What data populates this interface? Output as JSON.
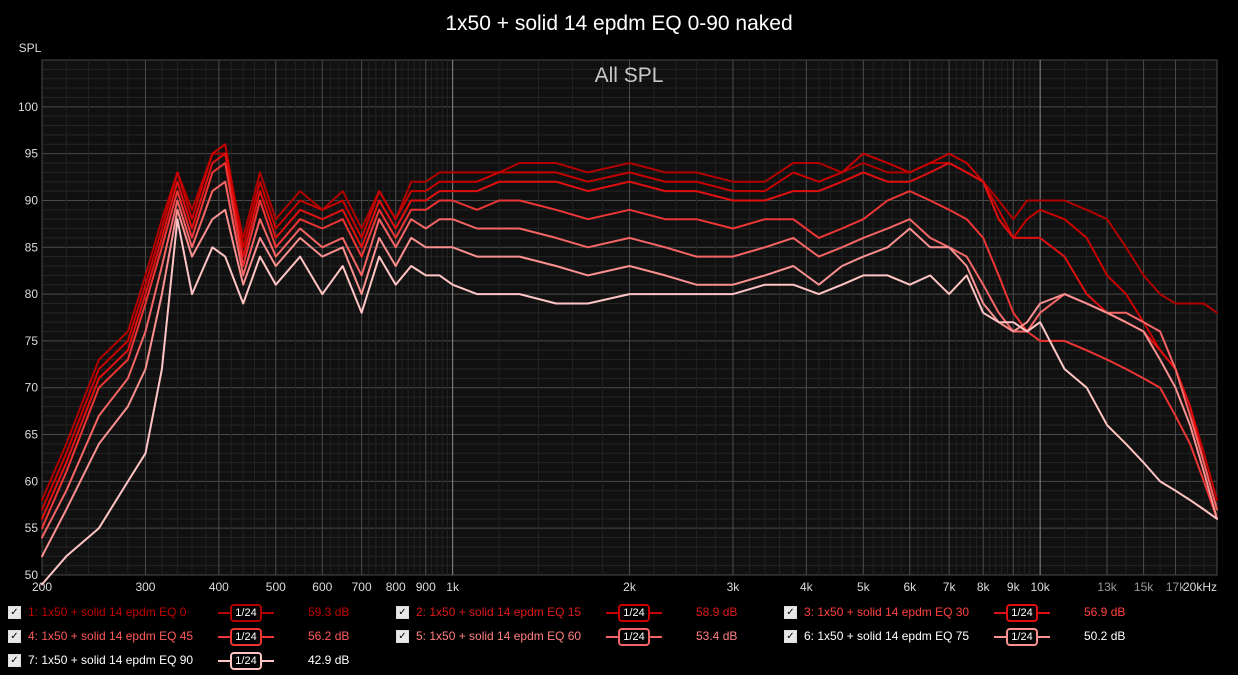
{
  "title": "1x50 + solid 14 epdm EQ 0-90 naked",
  "chart_data": {
    "type": "line",
    "title": "All SPL",
    "ylabel": "SPL",
    "xlabel": "",
    "x_scale": "log",
    "xlim": [
      200,
      20000
    ],
    "ylim": [
      50,
      105
    ],
    "y_ticks": [
      "50",
      "55",
      "60",
      "65",
      "70",
      "75",
      "80",
      "85",
      "90",
      "95",
      "100"
    ],
    "x_ticks": [
      {
        "f": 200,
        "label": "200"
      },
      {
        "f": 300,
        "label": "300"
      },
      {
        "f": 400,
        "label": "400"
      },
      {
        "f": 500,
        "label": "500"
      },
      {
        "f": 600,
        "label": "600"
      },
      {
        "f": 700,
        "label": "700"
      },
      {
        "f": 800,
        "label": "800"
      },
      {
        "f": 900,
        "label": "900"
      },
      {
        "f": 1000,
        "label": "1k"
      },
      {
        "f": 2000,
        "label": "2k"
      },
      {
        "f": 3000,
        "label": "3k"
      },
      {
        "f": 4000,
        "label": "4k"
      },
      {
        "f": 5000,
        "label": "5k"
      },
      {
        "f": 6000,
        "label": "6k"
      },
      {
        "f": 7000,
        "label": "7k"
      },
      {
        "f": 8000,
        "label": "8k"
      },
      {
        "f": 9000,
        "label": "9k"
      },
      {
        "f": 10000,
        "label": "10k"
      },
      {
        "f": 13000,
        "label": "13k",
        "dim": true
      },
      {
        "f": 15000,
        "label": "15k",
        "dim": true
      },
      {
        "f": 17000,
        "label": "17k",
        "dim": true
      },
      {
        "f": 20000,
        "label": "20kHz"
      }
    ],
    "grid": true,
    "legend_position": "bottom",
    "series": [
      {
        "name": "1: 1x50 + solid 14 epdm EQ 0",
        "color": "#b00000",
        "label_color": "#c00000",
        "smoothing": "1/24",
        "level": "59.3 dB",
        "x": [
          200,
          220,
          250,
          280,
          300,
          320,
          340,
          360,
          390,
          410,
          440,
          470,
          500,
          550,
          600,
          650,
          700,
          750,
          800,
          850,
          900,
          950,
          1000,
          1100,
          1200,
          1300,
          1500,
          1700,
          2000,
          2300,
          2600,
          3000,
          3400,
          3800,
          4200,
          4600,
          5000,
          5500,
          6000,
          6500,
          7000,
          7500,
          8000,
          8500,
          9000,
          9500,
          10000,
          11000,
          12000,
          13000,
          14000,
          15000,
          16000,
          17000,
          18000,
          19000,
          20000
        ],
        "y": [
          58,
          64,
          73,
          76,
          82,
          88,
          93,
          89,
          95,
          95,
          86,
          93,
          88,
          91,
          89,
          91,
          87,
          91,
          88,
          92,
          92,
          93,
          93,
          93,
          93,
          94,
          94,
          93,
          94,
          93,
          93,
          92,
          92,
          94,
          94,
          93,
          94,
          93,
          93,
          94,
          94,
          93,
          92,
          90,
          88,
          90,
          90,
          90,
          89,
          88,
          85,
          82,
          80,
          79,
          79,
          79,
          78
        ]
      },
      {
        "name": "2: 1x50 + solid 14 epdm EQ 15",
        "color": "#c80000",
        "label_color": "#dd1a1a",
        "smoothing": "1/24",
        "level": "58.9 dB",
        "x": [
          200,
          220,
          250,
          280,
          300,
          320,
          340,
          360,
          390,
          410,
          440,
          470,
          500,
          550,
          600,
          650,
          700,
          750,
          800,
          850,
          900,
          950,
          1000,
          1100,
          1200,
          1300,
          1500,
          1700,
          2000,
          2300,
          2600,
          3000,
          3400,
          3800,
          4200,
          4600,
          5000,
          5500,
          6000,
          6500,
          7000,
          7500,
          8000,
          8500,
          9000,
          9500,
          10000,
          11000,
          12000,
          13000,
          14000,
          15000,
          16000,
          17000,
          18000,
          19000,
          20000
        ],
        "y": [
          57,
          63,
          72,
          75,
          81,
          87,
          93,
          88,
          95,
          96,
          85,
          92,
          87,
          90,
          89,
          90,
          86,
          91,
          88,
          91,
          91,
          92,
          92,
          92,
          93,
          93,
          93,
          92,
          93,
          92,
          92,
          91,
          91,
          93,
          92,
          93,
          95,
          94,
          93,
          94,
          95,
          94,
          92,
          89,
          86,
          88,
          89,
          88,
          86,
          82,
          80,
          77,
          74,
          72,
          68,
          63,
          58
        ]
      },
      {
        "name": "3: 1x50 + solid 14 epdm EQ 30",
        "color": "#e01010",
        "label_color": "#ff4040",
        "smoothing": "1/24",
        "level": "56.9 dB",
        "x": [
          200,
          220,
          250,
          280,
          300,
          320,
          340,
          360,
          390,
          410,
          440,
          470,
          500,
          550,
          600,
          650,
          700,
          750,
          800,
          850,
          900,
          950,
          1000,
          1100,
          1200,
          1300,
          1500,
          1700,
          2000,
          2300,
          2600,
          3000,
          3400,
          3800,
          4200,
          4600,
          5000,
          5500,
          6000,
          6500,
          7000,
          7500,
          8000,
          8500,
          9000,
          9500,
          10000,
          11000,
          12000,
          13000,
          14000,
          15000,
          16000,
          17000,
          18000,
          19000,
          20000
        ],
        "y": [
          56,
          62,
          71,
          74,
          80,
          86,
          92,
          87,
          94,
          95,
          84,
          91,
          86,
          89,
          88,
          89,
          85,
          90,
          87,
          90,
          90,
          91,
          91,
          91,
          92,
          92,
          92,
          91,
          92,
          91,
          91,
          90,
          90,
          91,
          91,
          92,
          93,
          92,
          92,
          93,
          94,
          93,
          92,
          88,
          86,
          86,
          86,
          84,
          80,
          78,
          77,
          76,
          74,
          72,
          68,
          62,
          57
        ]
      },
      {
        "name": "4: 1x50 + solid 14 epdm EQ 45",
        "color": "#ee3535",
        "label_color": "#ff5a5a",
        "smoothing": "1/24",
        "level": "56.2 dB",
        "x": [
          200,
          220,
          250,
          280,
          300,
          320,
          340,
          360,
          390,
          410,
          440,
          470,
          500,
          550,
          600,
          650,
          700,
          750,
          800,
          850,
          900,
          950,
          1000,
          1100,
          1200,
          1300,
          1500,
          1700,
          2000,
          2300,
          2600,
          3000,
          3400,
          3800,
          4200,
          4600,
          5000,
          5500,
          6000,
          6500,
          7000,
          7500,
          8000,
          8500,
          9000,
          9500,
          10000,
          11000,
          12000,
          13000,
          14000,
          15000,
          16000,
          17000,
          18000,
          19000,
          20000
        ],
        "y": [
          55,
          61,
          70,
          73,
          79,
          85,
          91,
          86,
          93,
          94,
          83,
          90,
          85,
          88,
          87,
          88,
          84,
          89,
          86,
          89,
          89,
          90,
          90,
          89,
          90,
          90,
          89,
          88,
          89,
          88,
          88,
          87,
          88,
          88,
          86,
          87,
          88,
          90,
          91,
          90,
          89,
          88,
          86,
          82,
          78,
          76,
          75,
          75,
          74,
          73,
          72,
          71,
          70,
          67,
          64,
          60,
          56
        ]
      },
      {
        "name": "5: 1x50 + solid 14 epdm EQ 60",
        "color": "#f56565",
        "label_color": "#ff8080",
        "smoothing": "1/24",
        "level": "53.4 dB",
        "x": [
          200,
          220,
          250,
          280,
          300,
          320,
          340,
          360,
          390,
          410,
          440,
          470,
          500,
          550,
          600,
          650,
          700,
          750,
          800,
          850,
          900,
          950,
          1000,
          1100,
          1200,
          1300,
          1500,
          1700,
          2000,
          2300,
          2600,
          3000,
          3400,
          3800,
          4200,
          4600,
          5000,
          5500,
          6000,
          6500,
          7000,
          7500,
          8000,
          8500,
          9000,
          9500,
          10000,
          11000,
          12000,
          13000,
          14000,
          15000,
          16000,
          17000,
          18000,
          19000,
          20000
        ],
        "y": [
          54,
          59,
          67,
          71,
          76,
          83,
          90,
          85,
          91,
          92,
          82,
          88,
          84,
          87,
          85,
          86,
          82,
          88,
          85,
          88,
          87,
          88,
          88,
          87,
          87,
          87,
          86,
          85,
          86,
          85,
          84,
          84,
          85,
          86,
          84,
          85,
          86,
          87,
          88,
          86,
          85,
          84,
          81,
          78,
          76,
          76,
          78,
          80,
          79,
          78,
          78,
          77,
          76,
          72,
          67,
          62,
          57
        ]
      },
      {
        "name": "6: 1x50 + solid 14 epdm EQ 75",
        "color": "#fa9090",
        "label_color": "#ffffff",
        "smoothing": "1/24",
        "level": "50.2 dB",
        "x": [
          200,
          220,
          250,
          280,
          300,
          320,
          340,
          360,
          390,
          410,
          440,
          470,
          500,
          550,
          600,
          650,
          700,
          750,
          800,
          850,
          900,
          950,
          1000,
          1100,
          1200,
          1300,
          1500,
          1700,
          2000,
          2300,
          2600,
          3000,
          3400,
          3800,
          4200,
          4600,
          5000,
          5500,
          6000,
          6500,
          7000,
          7500,
          8000,
          8500,
          9000,
          9500,
          10000,
          11000,
          12000,
          13000,
          14000,
          15000,
          16000,
          17000,
          18000,
          19000,
          20000
        ],
        "y": [
          52,
          57,
          64,
          68,
          72,
          80,
          89,
          84,
          88,
          89,
          81,
          86,
          83,
          86,
          84,
          85,
          80,
          86,
          83,
          86,
          85,
          85,
          85,
          84,
          84,
          84,
          83,
          82,
          83,
          82,
          81,
          81,
          82,
          83,
          81,
          83,
          84,
          85,
          87,
          85,
          85,
          83,
          79,
          77,
          76,
          77,
          79,
          80,
          79,
          78,
          77,
          76,
          73,
          70,
          66,
          61,
          56
        ]
      },
      {
        "name": "7: 1x50 + solid 14 epdm EQ 90",
        "color": "#ffc4c4",
        "label_color": "#ffffff",
        "smoothing": "1/24",
        "level": "42.9 dB",
        "x": [
          200,
          220,
          250,
          280,
          300,
          320,
          340,
          360,
          390,
          410,
          440,
          470,
          500,
          550,
          600,
          650,
          700,
          750,
          800,
          850,
          900,
          950,
          1000,
          1100,
          1200,
          1300,
          1500,
          1700,
          2000,
          2300,
          2600,
          3000,
          3400,
          3800,
          4200,
          4600,
          5000,
          5500,
          6000,
          6500,
          7000,
          7500,
          8000,
          8500,
          9000,
          9500,
          10000,
          11000,
          12000,
          13000,
          14000,
          15000,
          16000,
          17000,
          18000,
          19000,
          20000
        ],
        "y": [
          49,
          52,
          55,
          60,
          63,
          72,
          88,
          80,
          85,
          84,
          79,
          84,
          81,
          84,
          80,
          83,
          78,
          84,
          81,
          83,
          82,
          82,
          81,
          80,
          80,
          80,
          79,
          79,
          80,
          80,
          80,
          80,
          81,
          81,
          80,
          81,
          82,
          82,
          81,
          82,
          80,
          82,
          78,
          77,
          77,
          76,
          77,
          72,
          70,
          66,
          64,
          62,
          60,
          59,
          58,
          57,
          56
        ]
      }
    ]
  }
}
